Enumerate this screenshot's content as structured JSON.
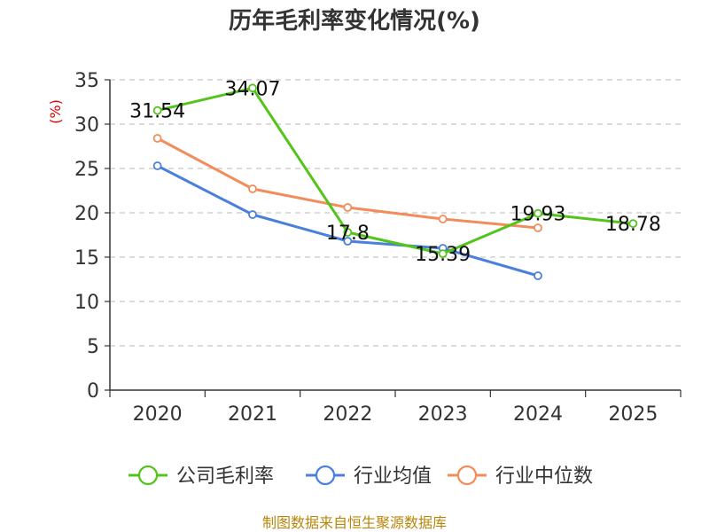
{
  "chart_data": {
    "type": "line",
    "title": "历年毛利率变化情况(%)",
    "ylabel": "(%)",
    "xlabel": "",
    "categories": [
      "2020",
      "2021",
      "2022",
      "2023",
      "2024",
      "2025"
    ],
    "ylim": [
      0,
      35
    ],
    "yticks": [
      0,
      5,
      10,
      15,
      20,
      25,
      30,
      35
    ],
    "grid": true,
    "legend_position": "bottom",
    "series": [
      {
        "name": "公司毛利率",
        "color": "#52c41a",
        "values": [
          31.54,
          34.07,
          17.8,
          15.39,
          19.93,
          18.78
        ],
        "labels": [
          "31.54",
          "34.07",
          "17.8",
          "15.39",
          "19.93",
          "18.78"
        ]
      },
      {
        "name": "行业均值",
        "color": "#4a7fdb",
        "values": [
          25.3,
          19.8,
          16.8,
          16.0,
          12.9,
          null
        ]
      },
      {
        "name": "行业中位数",
        "color": "#f28c5a",
        "values": [
          28.4,
          22.7,
          20.6,
          19.3,
          18.3,
          null
        ]
      }
    ],
    "source": "制图数据来自恒生聚源数据库"
  }
}
